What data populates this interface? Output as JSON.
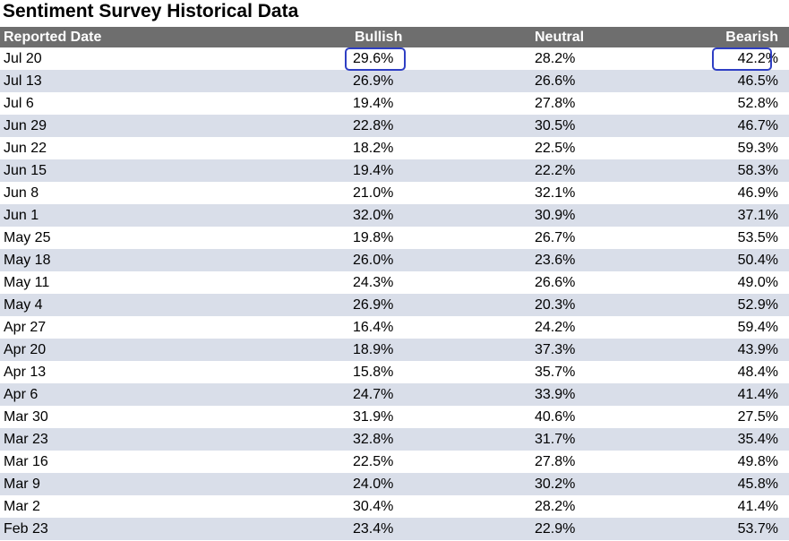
{
  "title": "Sentiment Survey Historical Data",
  "columns": {
    "date": "Reported Date",
    "bullish": "Bullish",
    "neutral": "Neutral",
    "bearish": "Bearish"
  },
  "highlight_color": "#2f3fc4",
  "header_color": "#6e6e6e",
  "alt_row_color": "#d9dee9",
  "rows": [
    {
      "date": "Jul 20",
      "bullish": "29.6%",
      "neutral": "28.2%",
      "bearish": "42.2%"
    },
    {
      "date": "Jul 13",
      "bullish": "26.9%",
      "neutral": "26.6%",
      "bearish": "46.5%"
    },
    {
      "date": "Jul 6",
      "bullish": "19.4%",
      "neutral": "27.8%",
      "bearish": "52.8%"
    },
    {
      "date": "Jun 29",
      "bullish": "22.8%",
      "neutral": "30.5%",
      "bearish": "46.7%"
    },
    {
      "date": "Jun 22",
      "bullish": "18.2%",
      "neutral": "22.5%",
      "bearish": "59.3%"
    },
    {
      "date": "Jun 15",
      "bullish": "19.4%",
      "neutral": "22.2%",
      "bearish": "58.3%"
    },
    {
      "date": "Jun 8",
      "bullish": "21.0%",
      "neutral": "32.1%",
      "bearish": "46.9%"
    },
    {
      "date": "Jun 1",
      "bullish": "32.0%",
      "neutral": "30.9%",
      "bearish": "37.1%"
    },
    {
      "date": "May 25",
      "bullish": "19.8%",
      "neutral": "26.7%",
      "bearish": "53.5%"
    },
    {
      "date": "May 18",
      "bullish": "26.0%",
      "neutral": "23.6%",
      "bearish": "50.4%"
    },
    {
      "date": "May 11",
      "bullish": "24.3%",
      "neutral": "26.6%",
      "bearish": "49.0%"
    },
    {
      "date": "May 4",
      "bullish": "26.9%",
      "neutral": "20.3%",
      "bearish": "52.9%"
    },
    {
      "date": "Apr 27",
      "bullish": "16.4%",
      "neutral": "24.2%",
      "bearish": "59.4%"
    },
    {
      "date": "Apr 20",
      "bullish": "18.9%",
      "neutral": "37.3%",
      "bearish": "43.9%"
    },
    {
      "date": "Apr 13",
      "bullish": "15.8%",
      "neutral": "35.7%",
      "bearish": "48.4%"
    },
    {
      "date": "Apr 6",
      "bullish": "24.7%",
      "neutral": "33.9%",
      "bearish": "41.4%"
    },
    {
      "date": "Mar 30",
      "bullish": "31.9%",
      "neutral": "40.6%",
      "bearish": "27.5%"
    },
    {
      "date": "Mar 23",
      "bullish": "32.8%",
      "neutral": "31.7%",
      "bearish": "35.4%"
    },
    {
      "date": "Mar 16",
      "bullish": "22.5%",
      "neutral": "27.8%",
      "bearish": "49.8%"
    },
    {
      "date": "Mar 9",
      "bullish": "24.0%",
      "neutral": "30.2%",
      "bearish": "45.8%"
    },
    {
      "date": "Mar 2",
      "bullish": "30.4%",
      "neutral": "28.2%",
      "bearish": "41.4%"
    },
    {
      "date": "Feb 23",
      "bullish": "23.4%",
      "neutral": "22.9%",
      "bearish": "53.7%"
    }
  ]
}
